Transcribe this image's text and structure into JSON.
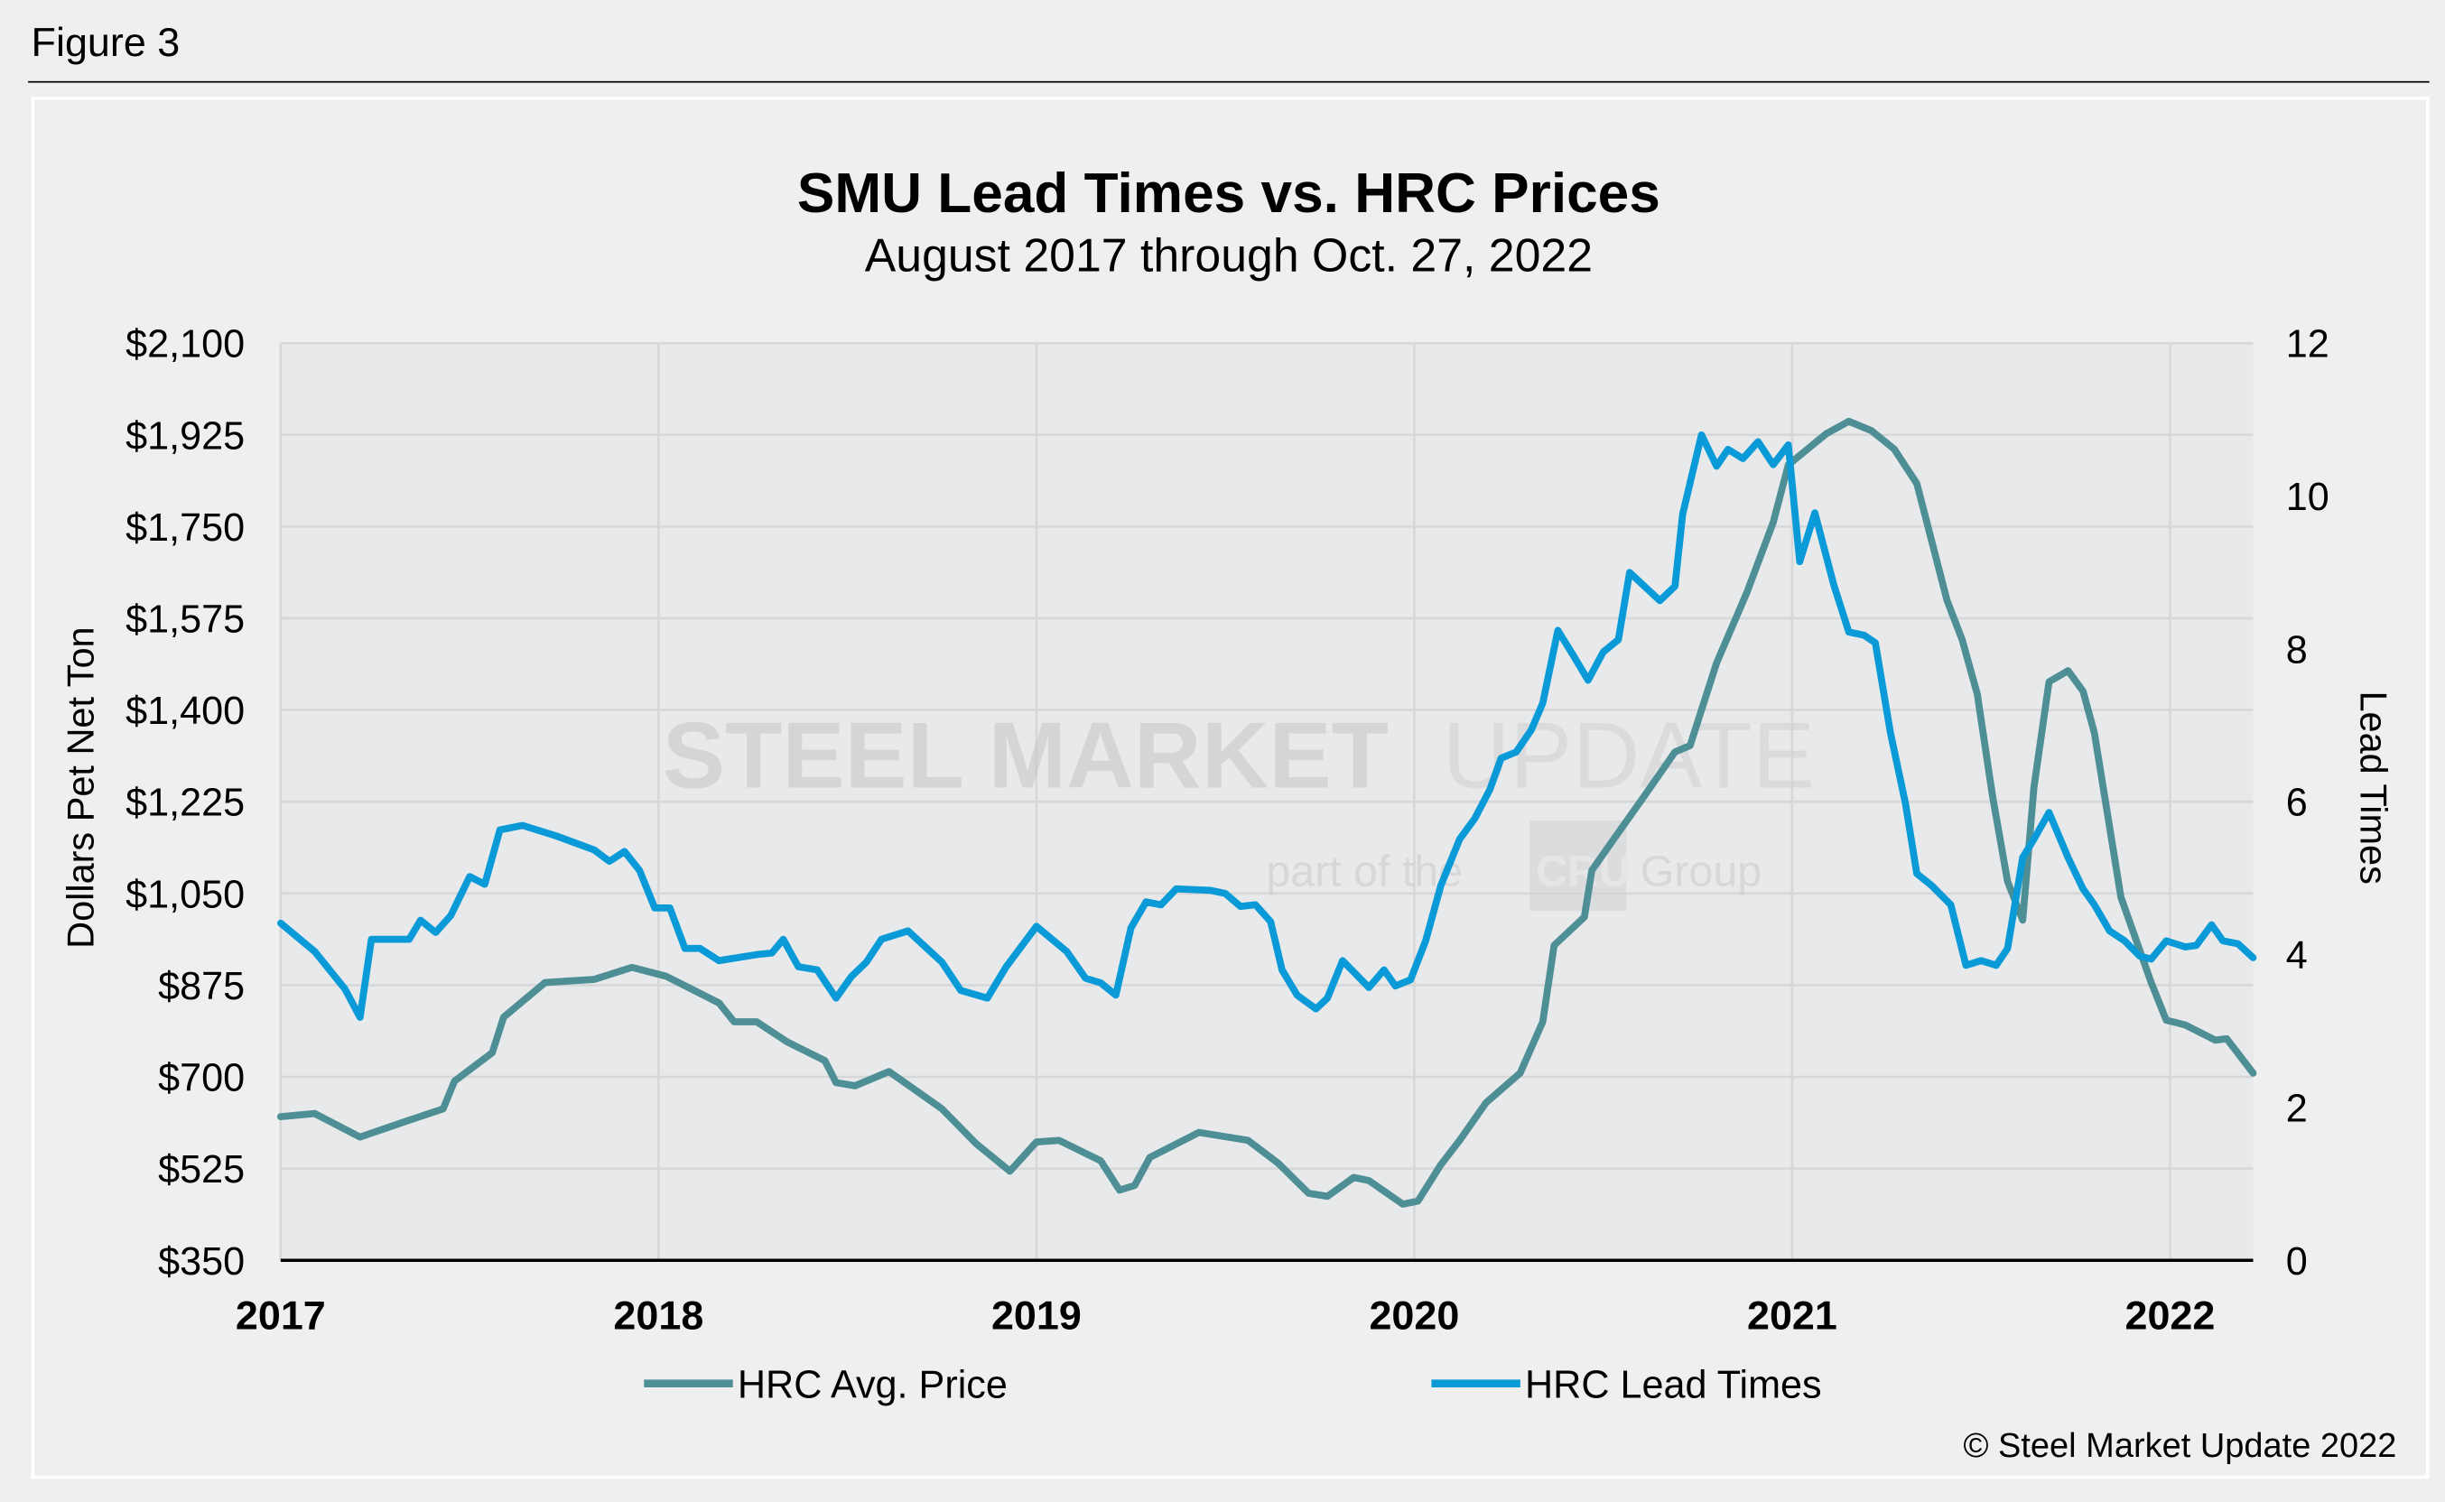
{
  "figure_label": "Figure 3",
  "copyright": "© Steel Market Update 2022",
  "watermark": {
    "line1_bold": "STEEL MARKET",
    "line1_light": "UPDATE",
    "line2_pre": "part of the",
    "line2_logo": "CRU",
    "line2_post": "Group"
  },
  "colors": {
    "price": "#4e8f96",
    "lead": "#0a9ad7",
    "plot_bg": "#e8e9ea",
    "grid": "#d6d7d9"
  },
  "chart_data": {
    "type": "line",
    "title": "SMU Lead Times vs. HRC Prices",
    "subtitle": "August 2017 through Oct. 27, 2022",
    "ylabel": "Dollars Pet Net Ton",
    "y2label": "Lead Times",
    "xlim": [
      2017,
      2022.22
    ],
    "ylim": [
      350,
      2100
    ],
    "y2lim": [
      0,
      12
    ],
    "xticks": [
      "2017",
      "2018",
      "2019",
      "2020",
      "2021",
      "2022"
    ],
    "yticks": [
      "$350",
      "$525",
      "$700",
      "$875",
      "$1,050",
      "$1,225",
      "$1,400",
      "$1,575",
      "$1,750",
      "$1,925",
      "$2,100"
    ],
    "y2ticks": [
      "0",
      "2",
      "4",
      "6",
      "8",
      "10",
      "12"
    ],
    "grid": true,
    "legend": "bottom",
    "series": [
      {
        "name": "HRC Avg. Price",
        "axis": "left",
        "x": [
          2017.0,
          2017.09,
          2017.21,
          2017.33,
          2017.43,
          2017.46,
          2017.56,
          2017.59,
          2017.7,
          2017.83,
          2017.93,
          2018.02,
          2018.16,
          2018.2,
          2018.26,
          2018.34,
          2018.44,
          2018.47,
          2018.52,
          2018.61,
          2018.75,
          2018.84,
          2018.93,
          2019.0,
          2019.06,
          2019.17,
          2019.22,
          2019.26,
          2019.3,
          2019.43,
          2019.56,
          2019.64,
          2019.72,
          2019.77,
          2019.84,
          2019.88,
          2019.97,
          2020.01,
          2020.07,
          2020.12,
          2020.19,
          2020.28,
          2020.34,
          2020.37,
          2020.45,
          2020.47,
          2020.53,
          2020.61,
          2020.69,
          2020.73,
          2020.8,
          2020.88,
          2020.95,
          2020.99,
          2021.09,
          2021.15,
          2021.21,
          2021.27,
          2021.33,
          2021.41,
          2021.45,
          2021.49,
          2021.53,
          2021.57,
          2021.61,
          2021.64,
          2021.68,
          2021.73,
          2021.77,
          2021.8,
          2021.87,
          2021.95,
          2021.99,
          2022.04,
          2022.12,
          2022.15,
          2022.22
        ],
        "values": [
          624,
          630,
          585,
          615,
          639,
          692,
          746,
          814,
          880,
          886,
          909,
          892,
          841,
          805,
          805,
          767,
          731,
          689,
          683,
          710,
          639,
          573,
          520,
          576,
          579,
          540,
          484,
          493,
          546,
          594,
          579,
          535,
          478,
          472,
          508,
          502,
          457,
          463,
          532,
          579,
          651,
          707,
          805,
          951,
          1005,
          1094,
          1156,
          1237,
          1320,
          1332,
          1490,
          1624,
          1758,
          1868,
          1927,
          1951,
          1933,
          1898,
          1832,
          1609,
          1534,
          1430,
          1237,
          1073,
          999,
          1252,
          1454,
          1475,
          1436,
          1356,
          1043,
          880,
          808,
          799,
          770,
          773,
          707
        ]
      },
      {
        "name": "HRC Lead Times",
        "axis": "right",
        "x": [
          2017.0,
          2017.09,
          2017.17,
          2017.21,
          2017.24,
          2017.34,
          2017.37,
          2017.41,
          2017.45,
          2017.5,
          2017.54,
          2017.58,
          2017.64,
          2017.73,
          2017.83,
          2017.87,
          2017.91,
          2017.95,
          2017.99,
          2018.03,
          2018.07,
          2018.11,
          2018.16,
          2018.26,
          2018.3,
          2018.33,
          2018.37,
          2018.42,
          2018.47,
          2018.51,
          2018.55,
          2018.59,
          2018.66,
          2018.75,
          2018.8,
          2018.87,
          2018.92,
          2019.0,
          2019.08,
          2019.13,
          2019.17,
          2019.21,
          2019.25,
          2019.29,
          2019.33,
          2019.37,
          2019.46,
          2019.5,
          2019.54,
          2019.58,
          2019.62,
          2019.65,
          2019.69,
          2019.74,
          2019.77,
          2019.81,
          2019.88,
          2019.92,
          2019.95,
          2019.99,
          2020.03,
          2020.07,
          2020.12,
          2020.16,
          2020.2,
          2020.23,
          2020.27,
          2020.31,
          2020.34,
          2020.38,
          2020.42,
          2020.46,
          2020.5,
          2020.54,
          2020.57,
          2020.65,
          2020.69,
          2020.71,
          2020.76,
          2020.8,
          2020.83,
          2020.87,
          2020.91,
          2020.95,
          2020.99,
          2021.02,
          2021.06,
          2021.11,
          2021.15,
          2021.19,
          2021.22,
          2021.26,
          2021.3,
          2021.33,
          2021.37,
          2021.42,
          2021.46,
          2021.5,
          2021.54,
          2021.57,
          2021.61,
          2021.64,
          2021.68,
          2021.73,
          2021.77,
          2021.8,
          2021.84,
          2021.88,
          2021.92,
          2021.95,
          2021.99,
          2022.04,
          2022.07,
          2022.11,
          2022.14,
          2022.18,
          2022.22
        ],
        "values": [
          4.41,
          4.04,
          3.55,
          3.18,
          4.2,
          4.2,
          4.45,
          4.29,
          4.51,
          5.02,
          4.92,
          5.63,
          5.69,
          5.55,
          5.37,
          5.22,
          5.35,
          5.1,
          4.61,
          4.61,
          4.08,
          4.08,
          3.92,
          4.0,
          4.02,
          4.2,
          3.84,
          3.8,
          3.43,
          3.71,
          3.9,
          4.2,
          4.31,
          3.9,
          3.53,
          3.43,
          3.84,
          4.37,
          4.04,
          3.69,
          3.63,
          3.47,
          4.35,
          4.69,
          4.65,
          4.86,
          4.84,
          4.8,
          4.63,
          4.65,
          4.43,
          3.8,
          3.47,
          3.29,
          3.43,
          3.92,
          3.57,
          3.8,
          3.59,
          3.67,
          4.18,
          4.9,
          5.51,
          5.78,
          6.16,
          6.57,
          6.65,
          6.94,
          7.29,
          8.24,
          7.92,
          7.59,
          7.96,
          8.12,
          9.0,
          8.63,
          8.82,
          9.76,
          10.8,
          10.39,
          10.61,
          10.49,
          10.71,
          10.41,
          10.67,
          9.14,
          9.78,
          8.84,
          8.22,
          8.18,
          8.08,
          6.9,
          5.98,
          5.06,
          4.9,
          4.65,
          3.86,
          3.92,
          3.86,
          4.08,
          5.27,
          5.51,
          5.86,
          5.27,
          4.86,
          4.65,
          4.31,
          4.18,
          3.98,
          3.94,
          4.18,
          4.1,
          4.12,
          4.39,
          4.18,
          4.14,
          3.96
        ]
      }
    ]
  }
}
